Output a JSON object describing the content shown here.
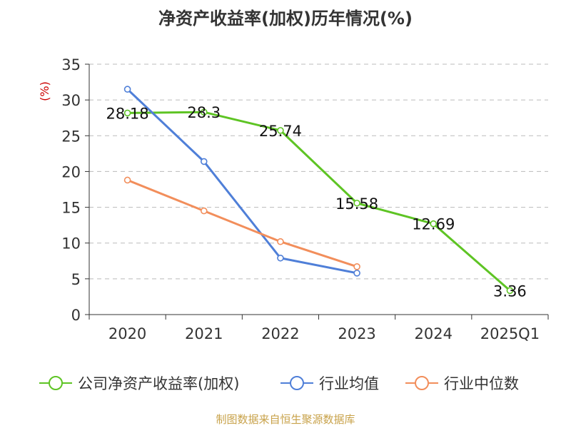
{
  "chart_data": {
    "type": "line",
    "title": "净资产收益率(加权)历年情况(%)",
    "ylabel": "(%)",
    "xlabel": "",
    "categories": [
      "2020",
      "2021",
      "2022",
      "2023",
      "2024",
      "2025Q1"
    ],
    "yticks": [
      "0",
      "5",
      "10",
      "15",
      "20",
      "25",
      "30",
      "35"
    ],
    "ylim": [
      0,
      35
    ],
    "grid": true,
    "legend_position": "bottom",
    "series": [
      {
        "name": "公司净资产收益率(加权)",
        "color": "#5ec424",
        "values": [
          28.18,
          28.3,
          25.74,
          15.58,
          12.69,
          3.36
        ],
        "labels": [
          "28.18",
          "28.3",
          "25.74",
          "15.58",
          "12.69",
          "3.36"
        ]
      },
      {
        "name": "行业均值",
        "color": "#4f7fd8",
        "values": [
          31.5,
          21.4,
          7.9,
          5.8,
          null,
          null
        ]
      },
      {
        "name": "行业中位数",
        "color": "#f28e5b",
        "values": [
          18.8,
          14.5,
          10.2,
          6.7,
          null,
          null
        ]
      }
    ]
  },
  "source": "制图数据来自恒生聚源数据库"
}
